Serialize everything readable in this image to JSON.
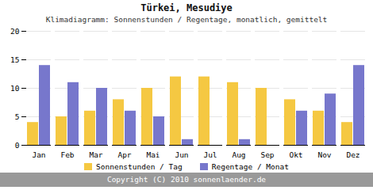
{
  "chart_data": {
    "type": "bar",
    "title": "Türkei, Mesudiye",
    "subtitle": "Klimadiagramm: Sonnenstunden / Regentage, monatlich, gemittelt",
    "caption": "Copyright (C) 2010 sonnenlaender.de",
    "categories": [
      "Jan",
      "Feb",
      "Mar",
      "Apr",
      "Mai",
      "Jun",
      "Jul",
      "Aug",
      "Sep",
      "Okt",
      "Nov",
      "Dez"
    ],
    "series": [
      {
        "name": "Sonnenstunden / Tag",
        "color": "#f5c842",
        "values": [
          4,
          5,
          6,
          8,
          10,
          12,
          12,
          11,
          10,
          8,
          6,
          4
        ]
      },
      {
        "name": "Regentage / Monat",
        "color": "#7777cc",
        "values": [
          14,
          11,
          10,
          6,
          5,
          1,
          0,
          1,
          0,
          6,
          9,
          14
        ]
      }
    ],
    "ylim": [
      0,
      20
    ],
    "yticks": [
      0,
      5,
      10,
      15,
      20
    ],
    "grid": true,
    "legend": "bottom"
  }
}
